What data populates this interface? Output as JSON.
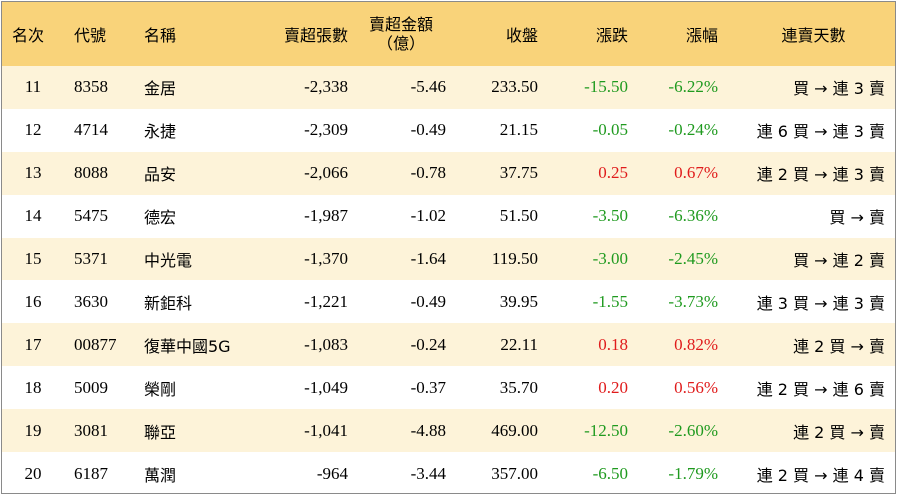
{
  "headers": {
    "rank": "名次",
    "code": "代號",
    "name": "名稱",
    "net_sell_lots": "賣超張數",
    "net_sell_amount_line1": "賣超金額",
    "net_sell_amount_line2": "（億）",
    "close": "收盤",
    "change": "漲跌",
    "pct": "漲幅",
    "streak": "連賣天數"
  },
  "colors": {
    "header_bg": "#f9d37a",
    "alt_row_bg": "#fdf3d9",
    "up": "#e01b1b",
    "down": "#1f9a1f"
  },
  "rows": [
    {
      "rank": "11",
      "code": "8358",
      "name": "金居",
      "lots": "-2,338",
      "amount": "-5.46",
      "close": "233.50",
      "change": "-15.50",
      "pct": "-6.22%",
      "dir": "down",
      "streak": "買 → 連 3 賣"
    },
    {
      "rank": "12",
      "code": "4714",
      "name": "永捷",
      "lots": "-2,309",
      "amount": "-0.49",
      "close": "21.15",
      "change": "-0.05",
      "pct": "-0.24%",
      "dir": "down",
      "streak": "連 6 買 → 連 3 賣"
    },
    {
      "rank": "13",
      "code": "8088",
      "name": "品安",
      "lots": "-2,066",
      "amount": "-0.78",
      "close": "37.75",
      "change": "0.25",
      "pct": "0.67%",
      "dir": "up",
      "streak": "連 2 買 → 連 3 賣"
    },
    {
      "rank": "14",
      "code": "5475",
      "name": "德宏",
      "lots": "-1,987",
      "amount": "-1.02",
      "close": "51.50",
      "change": "-3.50",
      "pct": "-6.36%",
      "dir": "down",
      "streak": "買 → 賣"
    },
    {
      "rank": "15",
      "code": "5371",
      "name": "中光電",
      "lots": "-1,370",
      "amount": "-1.64",
      "close": "119.50",
      "change": "-3.00",
      "pct": "-2.45%",
      "dir": "down",
      "streak": "買 → 連 2 賣"
    },
    {
      "rank": "16",
      "code": "3630",
      "name": "新鉅科",
      "lots": "-1,221",
      "amount": "-0.49",
      "close": "39.95",
      "change": "-1.55",
      "pct": "-3.73%",
      "dir": "down",
      "streak": "連 3 買 → 連 3 賣"
    },
    {
      "rank": "17",
      "code": "00877",
      "name": "復華中國5G",
      "lots": "-1,083",
      "amount": "-0.24",
      "close": "22.11",
      "change": "0.18",
      "pct": "0.82%",
      "dir": "up",
      "streak": "連 2 買 → 賣"
    },
    {
      "rank": "18",
      "code": "5009",
      "name": "榮剛",
      "lots": "-1,049",
      "amount": "-0.37",
      "close": "35.70",
      "change": "0.20",
      "pct": "0.56%",
      "dir": "up",
      "streak": "連 2 買 → 連 6 賣"
    },
    {
      "rank": "19",
      "code": "3081",
      "name": "聯亞",
      "lots": "-1,041",
      "amount": "-4.88",
      "close": "469.00",
      "change": "-12.50",
      "pct": "-2.60%",
      "dir": "down",
      "streak": "連 2 買 → 賣"
    },
    {
      "rank": "20",
      "code": "6187",
      "name": "萬潤",
      "lots": "-964",
      "amount": "-3.44",
      "close": "357.00",
      "change": "-6.50",
      "pct": "-1.79%",
      "dir": "down",
      "streak": "連 2 買 → 連 4 賣"
    }
  ]
}
